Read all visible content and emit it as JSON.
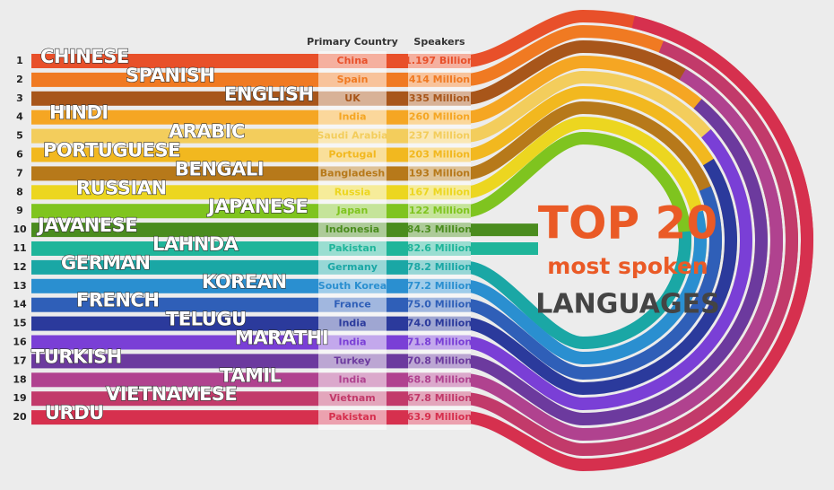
{
  "title": {
    "line1": "TOP 20",
    "line2": "most spoken",
    "line3": "LANGUAGES"
  },
  "headers": {
    "country": "Primary Country",
    "speakers": "Speakers"
  },
  "rows": [
    {
      "rank": "1",
      "language": "CHINESE",
      "country": "China",
      "speakers": "1.197 Billion",
      "color": "#e8502a"
    },
    {
      "rank": "2",
      "language": "SPANISH",
      "country": "Spain",
      "speakers": "414 Million",
      "color": "#f07a22"
    },
    {
      "rank": "3",
      "language": "ENGLISH",
      "country": "UK",
      "speakers": "335 Million",
      "color": "#a8561a"
    },
    {
      "rank": "4",
      "language": "HINDI",
      "country": "India",
      "speakers": "260 Million",
      "color": "#f5a623"
    },
    {
      "rank": "5",
      "language": "ARABIC",
      "country": "Saudi Arabia",
      "speakers": "237 Million",
      "color": "#f3cd5c"
    },
    {
      "rank": "6",
      "language": "PORTUGUESE",
      "country": "Portugal",
      "speakers": "203 Million",
      "color": "#f2b81f"
    },
    {
      "rank": "7",
      "language": "BENGALI",
      "country": "Bangladesh",
      "speakers": "193 Million",
      "color": "#b7791a"
    },
    {
      "rank": "8",
      "language": "RUSSIAN",
      "country": "Russia",
      "speakers": "167 Million",
      "color": "#ecd620"
    },
    {
      "rank": "9",
      "language": "JAPANESE",
      "country": "Japan",
      "speakers": "122 Million",
      "color": "#7fc41f"
    },
    {
      "rank": "10",
      "language": "JAVANESE",
      "country": "Indonesia",
      "speakers": "84.3 Million",
      "color": "#4a8c1e"
    },
    {
      "rank": "11",
      "language": "LAHNDA",
      "country": "Pakistan",
      "speakers": "82.6 Million",
      "color": "#1fb59a"
    },
    {
      "rank": "12",
      "language": "GERMAN",
      "country": "Germany",
      "speakers": "78.2 Million",
      "color": "#1aa7a5"
    },
    {
      "rank": "13",
      "language": "KOREAN",
      "country": "South Korea",
      "speakers": "77.2 Million",
      "color": "#2a8fd0"
    },
    {
      "rank": "14",
      "language": "FRENCH",
      "country": "France",
      "speakers": "75.0 Million",
      "color": "#2f5fb8"
    },
    {
      "rank": "15",
      "language": "TELUGU",
      "country": "India",
      "speakers": "74.0 Million",
      "color": "#2b3a9c"
    },
    {
      "rank": "16",
      "language": "MARATHI",
      "country": "India",
      "speakers": "71.8 Million",
      "color": "#7a3fd6"
    },
    {
      "rank": "17",
      "language": "TURKISH",
      "country": "Turkey",
      "speakers": "70.8 Million",
      "color": "#6c3a9e"
    },
    {
      "rank": "18",
      "language": "TAMIL",
      "country": "India",
      "speakers": "68.8 Million",
      "color": "#b0428f"
    },
    {
      "rank": "19",
      "language": "VIETNAMESE",
      "country": "Vietnam",
      "speakers": "67.8 Million",
      "color": "#c23a6a"
    },
    {
      "rank": "20",
      "language": "URDU",
      "country": "Pakistan",
      "speakers": "63.9 Million",
      "color": "#d6304e"
    }
  ]
}
